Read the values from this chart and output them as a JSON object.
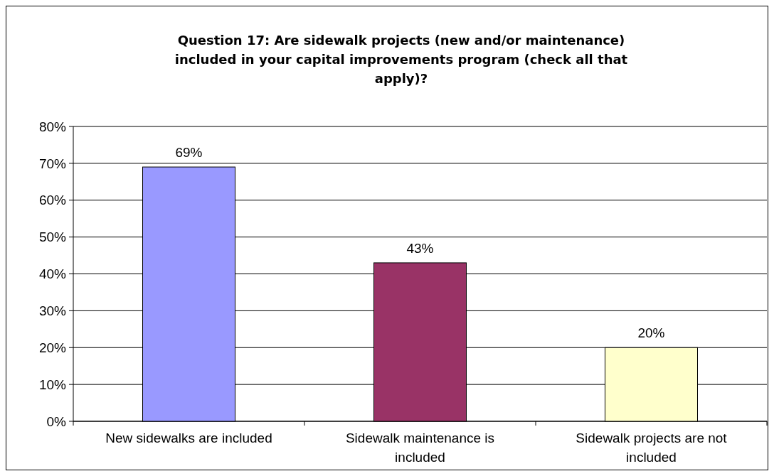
{
  "chart_data": {
    "type": "bar",
    "title": "Question 17: Are sidewalk projects (new and/or maintenance) included in your capital improvements program (check all that apply)?",
    "categories": [
      "New sidewalks are included",
      "Sidewalk maintenance is included",
      "Sidewalk projects are not included"
    ],
    "values": [
      69,
      43,
      20
    ],
    "colors": [
      "#9999ff",
      "#993366",
      "#ffffcc"
    ],
    "value_labels": [
      "69%",
      "43%",
      "20%"
    ],
    "ylim": [
      0,
      80
    ],
    "yticks": [
      {
        "value": 0,
        "label": "0%"
      },
      {
        "value": 10,
        "label": "10%"
      },
      {
        "value": 20,
        "label": "20%"
      },
      {
        "value": 30,
        "label": "30%"
      },
      {
        "value": 40,
        "label": "40%"
      },
      {
        "value": 50,
        "label": "50%"
      },
      {
        "value": 60,
        "label": "60%"
      },
      {
        "value": 70,
        "label": "70%"
      },
      {
        "value": 80,
        "label": "80%"
      }
    ],
    "grid": true
  }
}
